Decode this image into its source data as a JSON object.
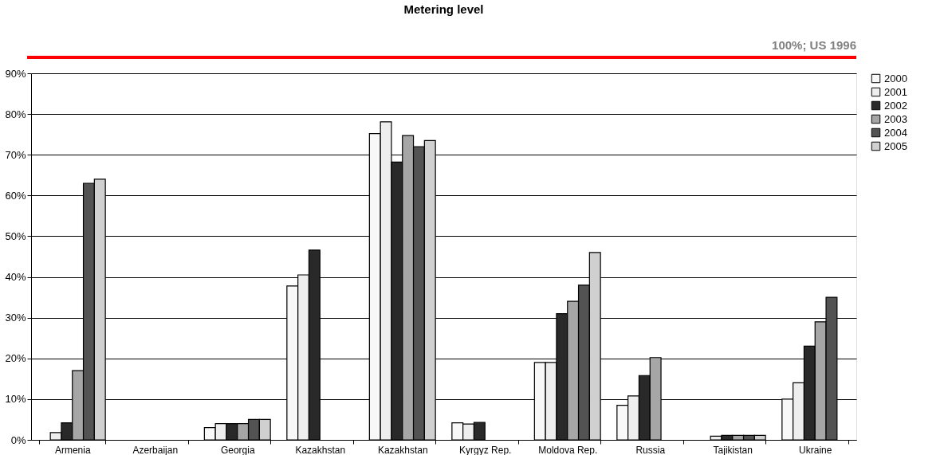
{
  "chart_data": {
    "type": "bar",
    "title": "Metering level",
    "annotations": [
      "100%; US 1996"
    ],
    "categories": [
      "Armenia",
      "Azerbaijan",
      "Georgia",
      "Kazakhstan",
      "Kazakhstan",
      "Kyrgyz Rep.",
      "Moldova Rep.",
      "Russia",
      "Tajikistan",
      "Ukraine"
    ],
    "series": [
      {
        "name": "2000",
        "color": "#f8f8f8",
        "values": [
          null,
          null,
          3,
          37.8,
          75.2,
          4.2,
          19,
          8.5,
          null,
          10
        ]
      },
      {
        "name": "2001",
        "color": "#eeeeee",
        "values": [
          1.8,
          null,
          4,
          40.5,
          78.1,
          3.9,
          19,
          10.8,
          0.9,
          14
        ]
      },
      {
        "name": "2002",
        "color": "#292929",
        "values": [
          4.2,
          null,
          4,
          46.6,
          68.2,
          4.3,
          31,
          15.8,
          1.1,
          23
        ]
      },
      {
        "name": "2003",
        "color": "#a6a6a6",
        "values": [
          17,
          null,
          4,
          null,
          74.7,
          null,
          34,
          20.2,
          1.1,
          29
        ]
      },
      {
        "name": "2004",
        "color": "#535353",
        "values": [
          63,
          null,
          5,
          null,
          72,
          null,
          38,
          null,
          1.1,
          35
        ]
      },
      {
        "name": "2005",
        "color": "#d0d0d0",
        "values": [
          64,
          null,
          5,
          null,
          73.5,
          null,
          46,
          null,
          1.1,
          null
        ]
      }
    ],
    "ylim": [
      0,
      90
    ],
    "yticks": [
      {
        "value": 0,
        "label": "0%"
      },
      {
        "value": 10,
        "label": "10%"
      },
      {
        "value": 20,
        "label": "20%"
      },
      {
        "value": 30,
        "label": "30%"
      },
      {
        "value": 40,
        "label": "40%"
      },
      {
        "value": 50,
        "label": "50%"
      },
      {
        "value": 60,
        "label": "60%"
      },
      {
        "value": 70,
        "label": "70%"
      },
      {
        "value": 80,
        "label": "80%"
      },
      {
        "value": 90,
        "label": "90%"
      }
    ],
    "grid": "y",
    "legend": "right"
  }
}
